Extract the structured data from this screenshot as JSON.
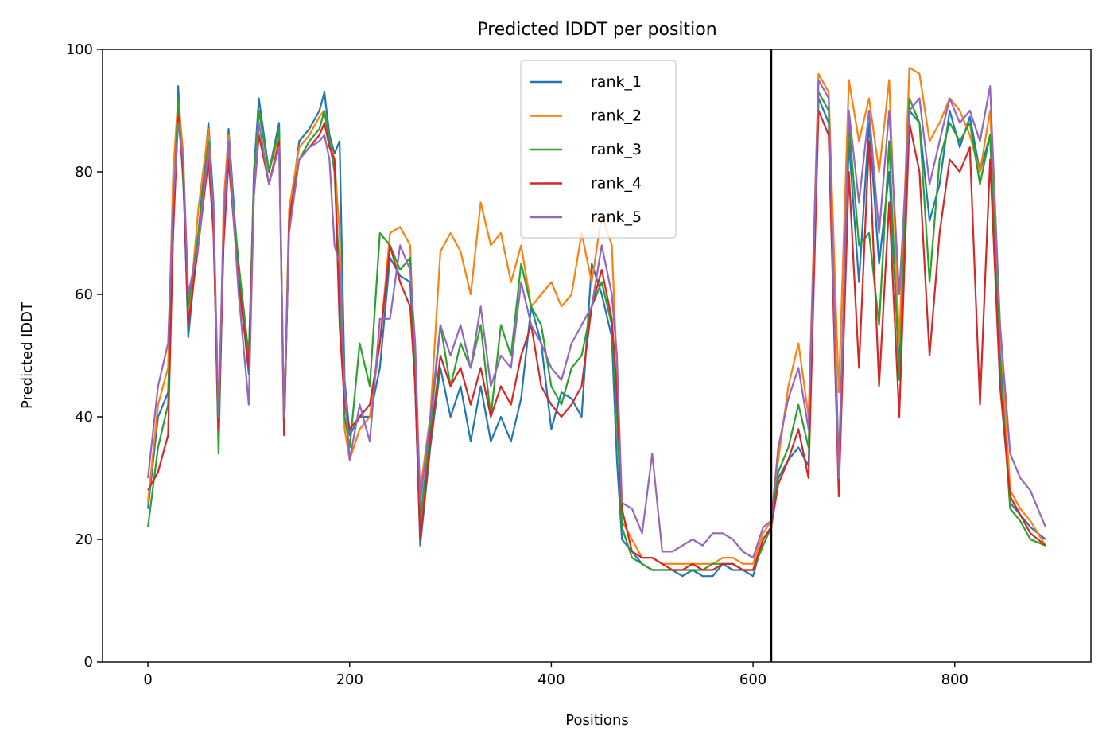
{
  "chart_data": {
    "type": "line",
    "title": "Predicted lDDT per position",
    "xlabel": "Positions",
    "ylabel": "Predicted lDDT",
    "xlim": [
      -45,
      935
    ],
    "ylim": [
      0,
      100
    ],
    "xticks": [
      0,
      200,
      400,
      600,
      800
    ],
    "yticks": [
      0,
      20,
      40,
      60,
      80,
      100
    ],
    "grid": false,
    "legend_position": "upper center",
    "vline_x": 618,
    "x": [
      0,
      10,
      20,
      25,
      30,
      35,
      40,
      50,
      60,
      65,
      70,
      75,
      80,
      90,
      100,
      105,
      110,
      120,
      130,
      135,
      140,
      150,
      160,
      170,
      175,
      180,
      185,
      190,
      195,
      200,
      210,
      220,
      230,
      240,
      250,
      260,
      265,
      270,
      280,
      290,
      300,
      310,
      320,
      330,
      340,
      350,
      360,
      370,
      380,
      390,
      400,
      410,
      420,
      430,
      440,
      450,
      460,
      465,
      470,
      480,
      490,
      500,
      510,
      520,
      530,
      540,
      550,
      560,
      570,
      580,
      590,
      600,
      610,
      618,
      625,
      635,
      645,
      655,
      665,
      675,
      685,
      695,
      705,
      715,
      725,
      735,
      745,
      755,
      765,
      775,
      785,
      795,
      805,
      815,
      825,
      835,
      845,
      855,
      865,
      875,
      890
    ],
    "series": [
      {
        "name": "rank_1",
        "color": "#1f77b4",
        "values": [
          25,
          40,
          44,
          70,
          94,
          80,
          53,
          70,
          88,
          75,
          36,
          72,
          87,
          63,
          47,
          80,
          92,
          80,
          88,
          38,
          72,
          85,
          87,
          90,
          93,
          86,
          83,
          85,
          46,
          37,
          40,
          40,
          48,
          66,
          63,
          62,
          45,
          19,
          35,
          48,
          40,
          45,
          36,
          45,
          36,
          40,
          36,
          43,
          58,
          52,
          38,
          44,
          43,
          40,
          65,
          60,
          53,
          33,
          20,
          18,
          16,
          15,
          15,
          15,
          14,
          15,
          14,
          14,
          16,
          15,
          15,
          14,
          20,
          22,
          30,
          33,
          35,
          32,
          92,
          88,
          31,
          85,
          62,
          88,
          65,
          80,
          48,
          90,
          88,
          72,
          78,
          90,
          84,
          89,
          80,
          86,
          50,
          26,
          24,
          22,
          20
        ]
      },
      {
        "name": "rank_2",
        "color": "#ff7f0e",
        "values": [
          26,
          42,
          48,
          80,
          92,
          83,
          55,
          74,
          87,
          72,
          35,
          75,
          86,
          60,
          50,
          78,
          90,
          80,
          86,
          39,
          74,
          84,
          86,
          89,
          90,
          85,
          82,
          70,
          38,
          33,
          38,
          40,
          52,
          70,
          71,
          68,
          45,
          28,
          40,
          67,
          70,
          67,
          60,
          75,
          68,
          70,
          62,
          68,
          58,
          60,
          62,
          58,
          60,
          70,
          62,
          73,
          68,
          48,
          23,
          20,
          17,
          17,
          16,
          16,
          16,
          16,
          16,
          16,
          17,
          17,
          16,
          16,
          21,
          23,
          33,
          45,
          52,
          40,
          96,
          93,
          44,
          95,
          85,
          92,
          80,
          95,
          52,
          97,
          96,
          85,
          88,
          92,
          90,
          86,
          80,
          90,
          55,
          28,
          25,
          23,
          19
        ]
      },
      {
        "name": "rank_3",
        "color": "#2ca02c",
        "values": [
          22,
          35,
          42,
          72,
          92,
          78,
          58,
          70,
          85,
          72,
          34,
          70,
          83,
          65,
          50,
          78,
          90,
          80,
          87,
          37,
          72,
          82,
          85,
          87,
          90,
          85,
          80,
          62,
          40,
          35,
          52,
          45,
          70,
          68,
          64,
          66,
          45,
          23,
          38,
          55,
          45,
          52,
          48,
          55,
          40,
          55,
          50,
          65,
          58,
          55,
          45,
          42,
          48,
          50,
          58,
          62,
          55,
          40,
          22,
          17,
          16,
          15,
          15,
          15,
          15,
          15,
          15,
          16,
          16,
          16,
          15,
          15,
          19,
          22,
          31,
          35,
          42,
          35,
          93,
          90,
          32,
          88,
          68,
          70,
          55,
          85,
          46,
          92,
          88,
          62,
          82,
          88,
          85,
          88,
          78,
          86,
          48,
          25,
          23,
          20,
          19
        ]
      },
      {
        "name": "rank_4",
        "color": "#d62728",
        "values": [
          28,
          31,
          37,
          70,
          89,
          80,
          55,
          68,
          82,
          70,
          38,
          68,
          82,
          62,
          48,
          76,
          86,
          78,
          85,
          37,
          72,
          82,
          84,
          86,
          88,
          84,
          82,
          55,
          42,
          38,
          40,
          42,
          52,
          68,
          62,
          58,
          45,
          20,
          36,
          50,
          45,
          48,
          42,
          48,
          40,
          45,
          42,
          50,
          55,
          45,
          42,
          40,
          42,
          45,
          58,
          64,
          56,
          44,
          25,
          18,
          17,
          17,
          16,
          15,
          15,
          16,
          15,
          15,
          16,
          16,
          15,
          15,
          20,
          22,
          29,
          33,
          38,
          30,
          90,
          86,
          27,
          80,
          48,
          85,
          45,
          75,
          40,
          88,
          80,
          50,
          70,
          82,
          80,
          84,
          42,
          82,
          45,
          27,
          24,
          21,
          19
        ]
      },
      {
        "name": "rank_5",
        "color": "#9467bd",
        "values": [
          30,
          45,
          52,
          75,
          88,
          82,
          60,
          68,
          84,
          74,
          40,
          72,
          85,
          60,
          42,
          76,
          88,
          78,
          84,
          40,
          70,
          82,
          84,
          85,
          86,
          82,
          68,
          65,
          45,
          33,
          42,
          36,
          56,
          56,
          68,
          64,
          52,
          26,
          40,
          55,
          50,
          55,
          48,
          58,
          45,
          50,
          48,
          62,
          55,
          52,
          48,
          46,
          52,
          55,
          58,
          68,
          60,
          50,
          26,
          25,
          21,
          34,
          18,
          18,
          19,
          20,
          19,
          21,
          21,
          20,
          18,
          17,
          22,
          23,
          35,
          43,
          48,
          38,
          95,
          92,
          30,
          90,
          75,
          90,
          70,
          90,
          60,
          90,
          92,
          78,
          85,
          92,
          88,
          90,
          85,
          94,
          55,
          34,
          30,
          28,
          22
        ]
      }
    ]
  }
}
